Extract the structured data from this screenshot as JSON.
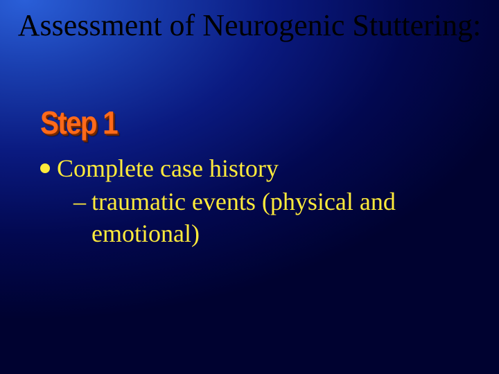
{
  "slide": {
    "background": {
      "gradient_center_color": "#2a5fd8",
      "gradient_mid_color": "#0a1a80",
      "gradient_outer_color": "#000230"
    },
    "title": {
      "text": "Assessment of Neurogenic Stuttering:",
      "font_family": "Times New Roman",
      "font_size_pt": 33,
      "color": "#000000"
    },
    "step_label": {
      "text": "Step 1",
      "font_family": "Arial",
      "font_size_pt": 34,
      "font_weight": 900,
      "color": "#ff6a1a",
      "shadow_color": "#7a2a00"
    },
    "bullets": [
      {
        "text": "Complete case history",
        "sub_items": [
          {
            "text": "traumatic events (physical and emotional)"
          }
        ]
      }
    ],
    "body_text": {
      "color": "#ffeb3b",
      "font_family": "Times New Roman",
      "font_size_pt": 27,
      "bullet_dot_color": "#ffeb3b"
    }
  }
}
